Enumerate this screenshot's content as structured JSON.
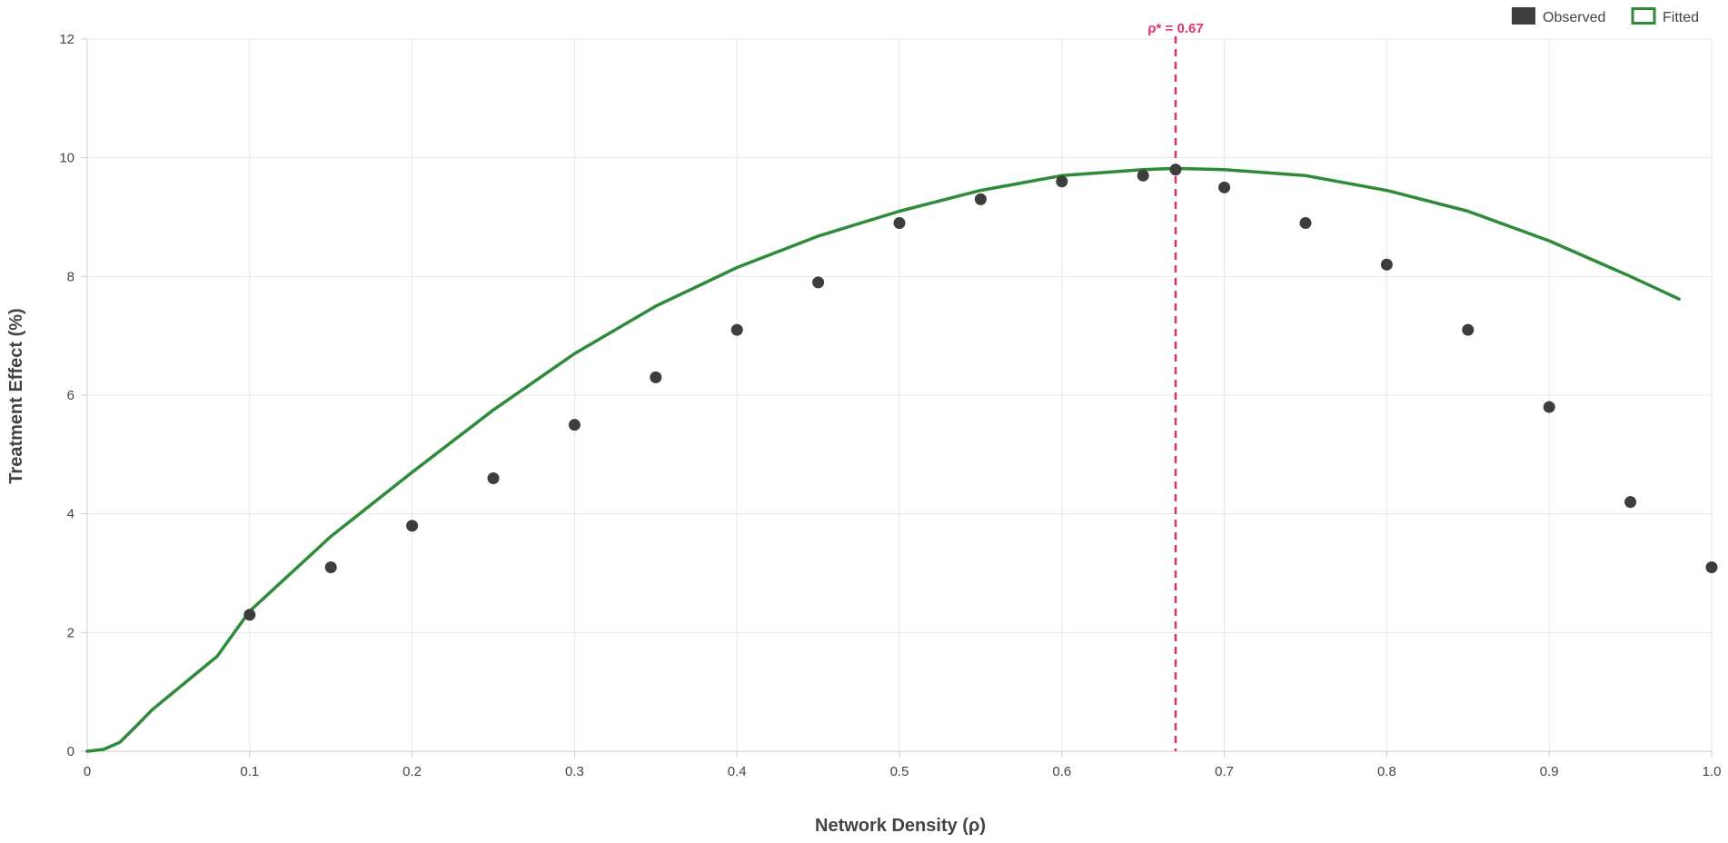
{
  "chart_data": {
    "type": "scatter",
    "xlabel": "Network Density (ρ)",
    "ylabel": "Treatment Effect (%)",
    "xlim": [
      0,
      1
    ],
    "ylim": [
      0,
      12
    ],
    "x_ticks": [
      "0",
      "0.1",
      "0.2",
      "0.3",
      "0.4",
      "0.5",
      "0.6",
      "0.7",
      "0.8",
      "0.9",
      "1.0"
    ],
    "y_ticks": [
      "0",
      "2",
      "4",
      "6",
      "8",
      "10",
      "12"
    ],
    "grid": true,
    "legend_position": "top-right",
    "legend": [
      "Observed",
      "Fitted"
    ],
    "series": [
      {
        "name": "Observed",
        "kind": "scatter",
        "color": "#3d3d3d",
        "points": [
          {
            "x": 0.1,
            "y": 2.3
          },
          {
            "x": 0.15,
            "y": 3.1
          },
          {
            "x": 0.2,
            "y": 3.8
          },
          {
            "x": 0.25,
            "y": 4.6
          },
          {
            "x": 0.3,
            "y": 5.5
          },
          {
            "x": 0.35,
            "y": 6.3
          },
          {
            "x": 0.4,
            "y": 7.1
          },
          {
            "x": 0.45,
            "y": 7.9
          },
          {
            "x": 0.5,
            "y": 8.9
          },
          {
            "x": 0.55,
            "y": 9.3
          },
          {
            "x": 0.6,
            "y": 9.6
          },
          {
            "x": 0.65,
            "y": 9.7
          },
          {
            "x": 0.67,
            "y": 9.8
          },
          {
            "x": 0.7,
            "y": 9.5
          },
          {
            "x": 0.75,
            "y": 8.9
          },
          {
            "x": 0.8,
            "y": 8.2
          },
          {
            "x": 0.85,
            "y": 7.1
          },
          {
            "x": 0.9,
            "y": 5.8
          },
          {
            "x": 0.95,
            "y": 4.2
          },
          {
            "x": 1.0,
            "y": 3.1
          }
        ]
      },
      {
        "name": "Fitted",
        "kind": "line",
        "color": "#2e8b3a",
        "points": [
          {
            "x": 0.0,
            "y": 0.0
          },
          {
            "x": 0.01,
            "y": 0.03
          },
          {
            "x": 0.02,
            "y": 0.15
          },
          {
            "x": 0.03,
            "y": 0.42
          },
          {
            "x": 0.04,
            "y": 0.7
          },
          {
            "x": 0.06,
            "y": 1.15
          },
          {
            "x": 0.08,
            "y": 1.6
          },
          {
            "x": 0.1,
            "y": 2.36
          },
          {
            "x": 0.15,
            "y": 3.62
          },
          {
            "x": 0.2,
            "y": 4.7
          },
          {
            "x": 0.25,
            "y": 5.75
          },
          {
            "x": 0.3,
            "y": 6.7
          },
          {
            "x": 0.35,
            "y": 7.5
          },
          {
            "x": 0.4,
            "y": 8.15
          },
          {
            "x": 0.45,
            "y": 8.68
          },
          {
            "x": 0.5,
            "y": 9.1
          },
          {
            "x": 0.55,
            "y": 9.45
          },
          {
            "x": 0.6,
            "y": 9.7
          },
          {
            "x": 0.65,
            "y": 9.8
          },
          {
            "x": 0.67,
            "y": 9.82
          },
          {
            "x": 0.7,
            "y": 9.8
          },
          {
            "x": 0.75,
            "y": 9.7
          },
          {
            "x": 0.8,
            "y": 9.45
          },
          {
            "x": 0.85,
            "y": 9.1
          },
          {
            "x": 0.9,
            "y": 8.6
          },
          {
            "x": 0.95,
            "y": 8.0
          },
          {
            "x": 0.98,
            "y": 7.62
          }
        ]
      }
    ],
    "annotations": [
      {
        "type": "vline",
        "x": 0.67,
        "label": "ρ* = 0.67",
        "color": "#e0306a",
        "style": "dashed"
      }
    ]
  }
}
